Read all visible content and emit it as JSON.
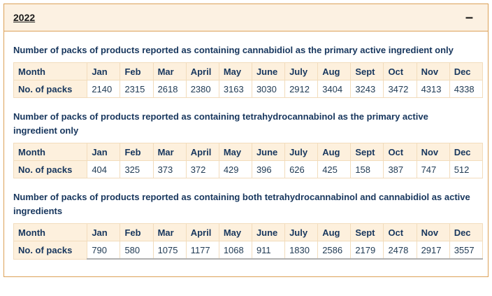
{
  "accordion": {
    "title": "2022",
    "collapse_icon": "–"
  },
  "table_common": {
    "row_header": "Month",
    "data_label": "No. of packs"
  },
  "sections": [
    {
      "title": "Number of packs of products reported as containing cannabidiol as the primary active ingredient only",
      "table": {
        "months": [
          "Jan",
          "Feb",
          "Mar",
          "April",
          "May",
          "June",
          "July",
          "Aug",
          "Sept",
          "Oct",
          "Nov",
          "Dec"
        ],
        "values": [
          "2140",
          "2315",
          "2618",
          "2380",
          "3163",
          "3030",
          "2912",
          "3404",
          "3243",
          "3472",
          "4313",
          "4338"
        ]
      }
    },
    {
      "title": "Number of packs of products reported as containing tetrahydrocannabinol as the primary active ingredient only",
      "table": {
        "months": [
          "Jan",
          "Feb",
          "Mar",
          "April",
          "May",
          "June",
          "July",
          "Aug",
          "Sept",
          "Oct",
          "Nov",
          "Dec"
        ],
        "values": [
          "404",
          "325",
          "373",
          "372",
          "429",
          "396",
          "626",
          "425",
          "158",
          "387",
          "747",
          "512"
        ]
      }
    },
    {
      "title": "Number of packs of products reported as containing both tetrahydrocannabinol and cannabidiol as active ingredients",
      "table": {
        "months": [
          "Jan",
          "Feb",
          "Mar",
          "April",
          "May",
          "June",
          "July",
          "Aug",
          "Sept",
          "Oct",
          "Nov",
          "Dec"
        ],
        "values": [
          "790",
          "580",
          "1075",
          "1177",
          "1068",
          "911",
          "1830",
          "2586",
          "2179",
          "2478",
          "2917",
          "3557"
        ]
      }
    }
  ],
  "colors": {
    "panel_border": "#dca158",
    "header_bg": "#fcf1e2",
    "cell_peach_bg": "#fdf0dd",
    "cell_border": "#f2dcbc",
    "title_text": "#17365d",
    "value_text": "#223c55"
  }
}
